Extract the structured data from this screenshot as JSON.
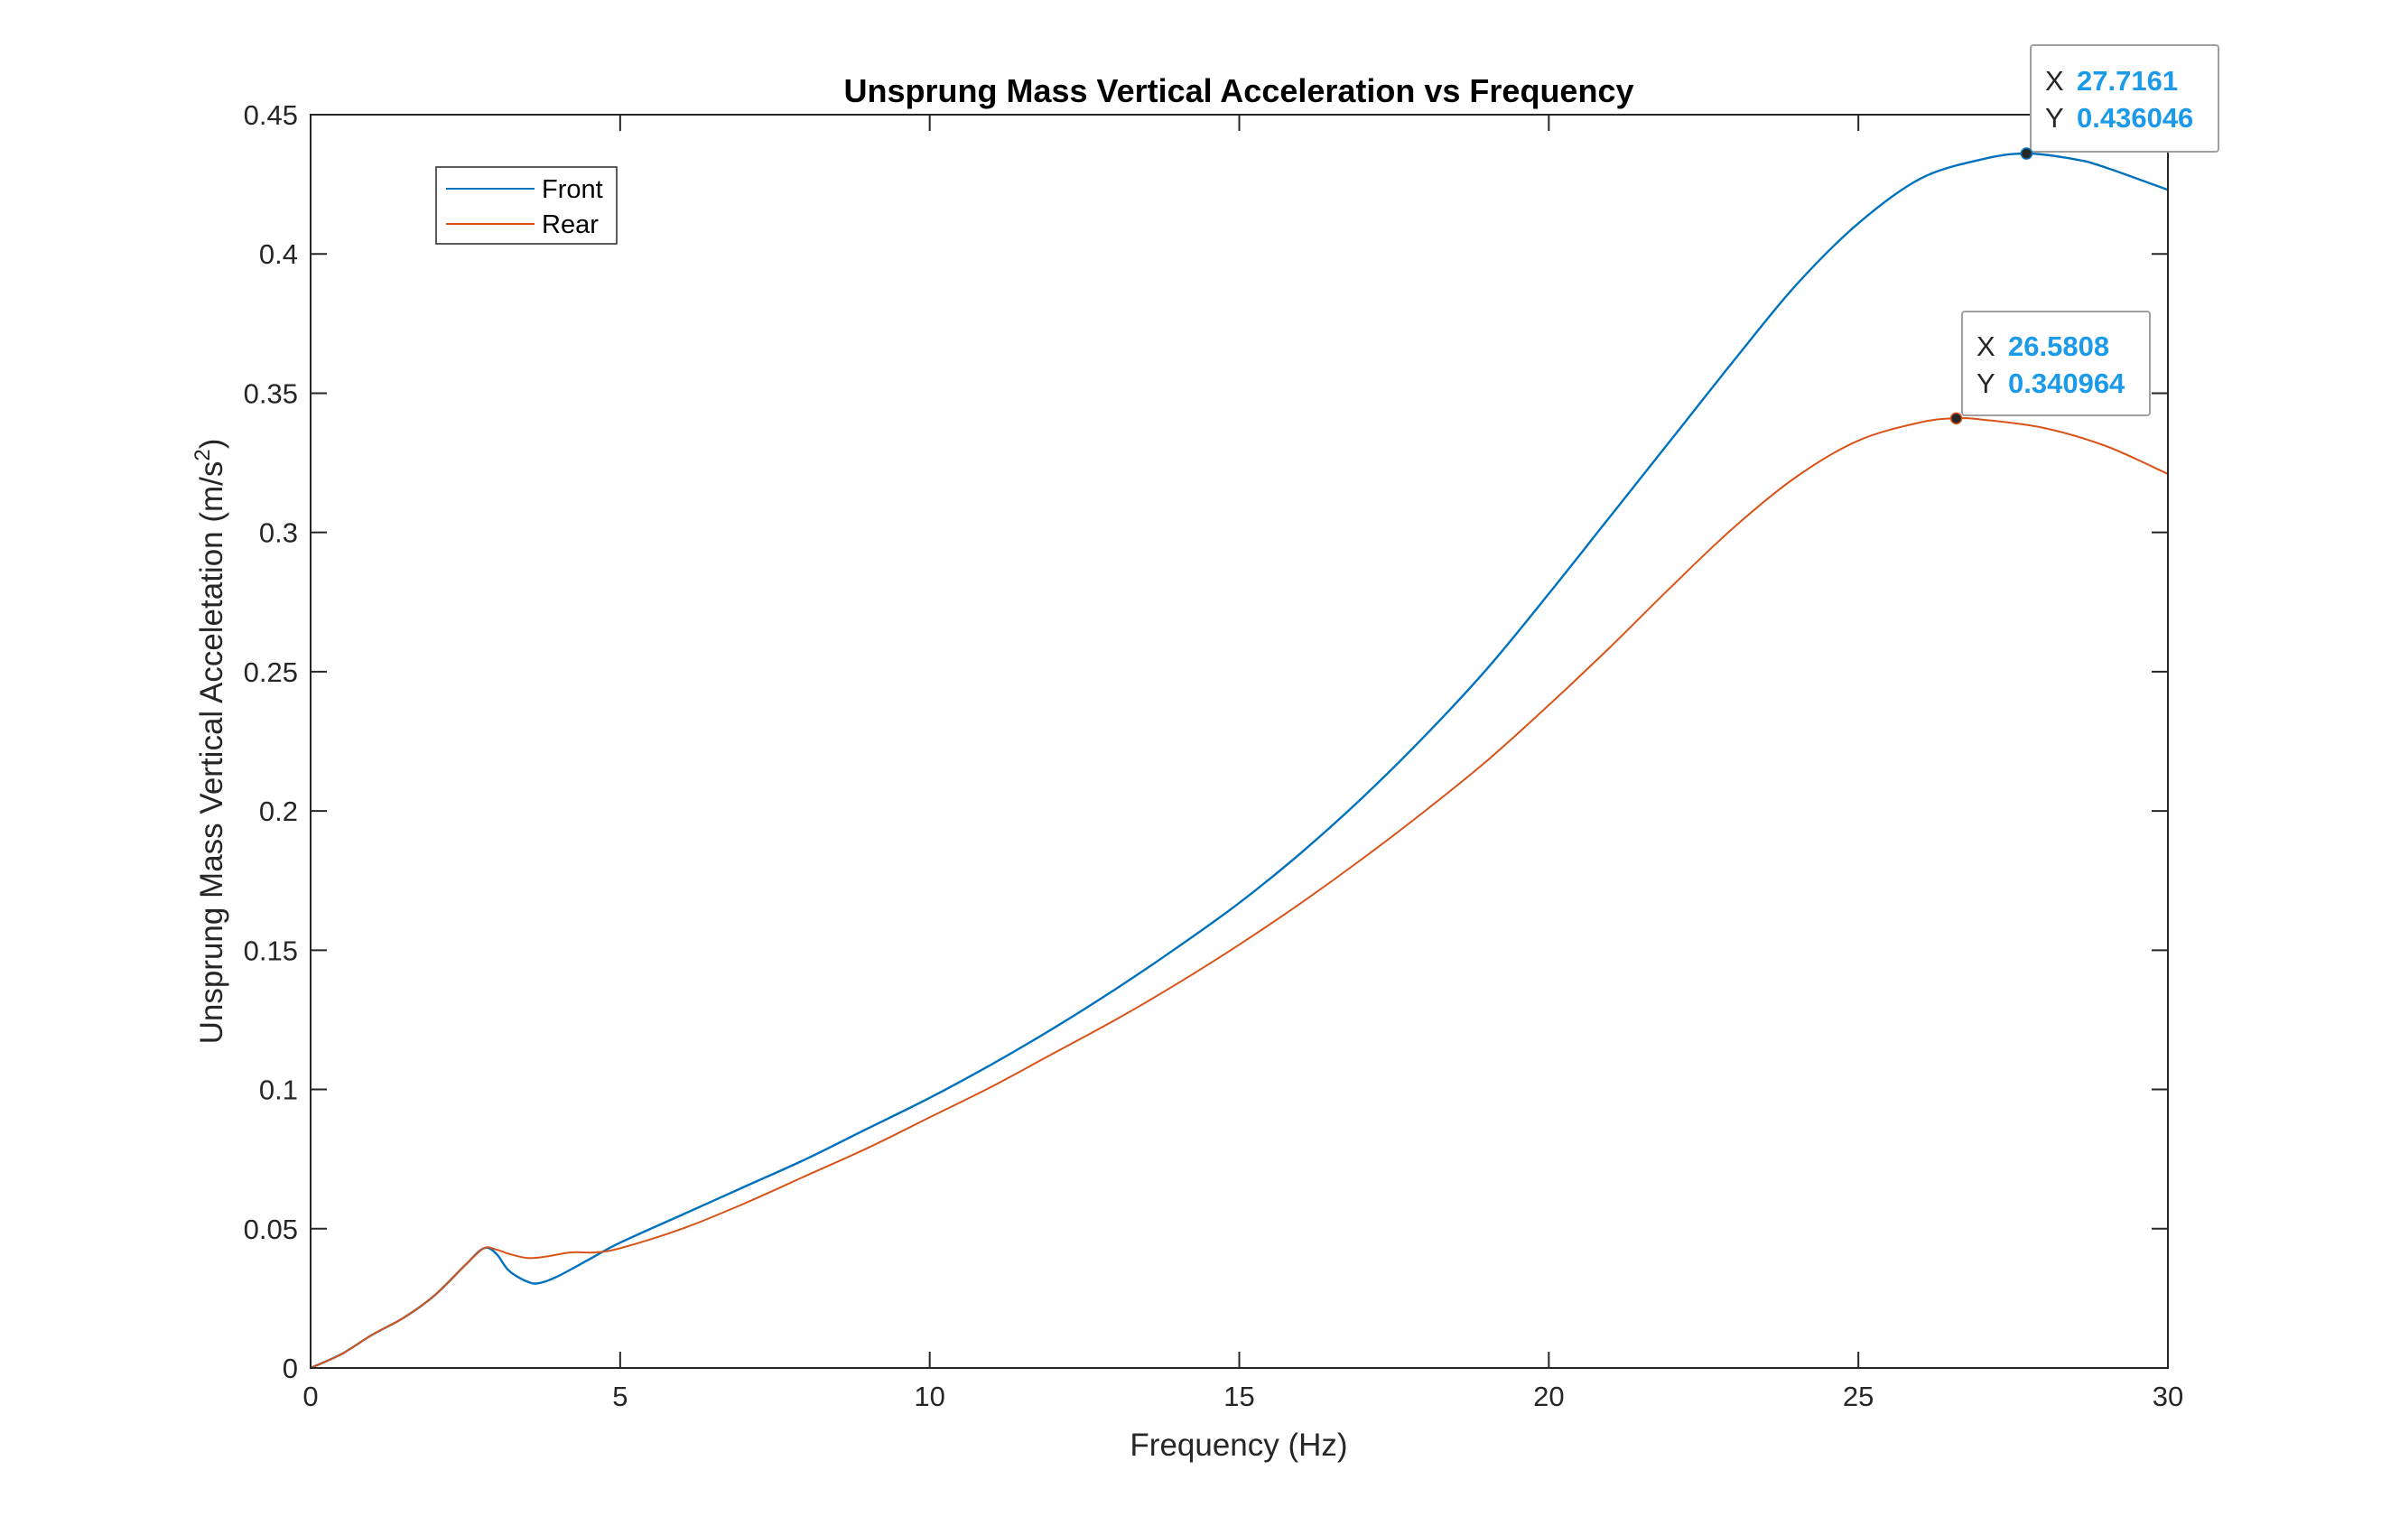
{
  "chart_data": {
    "type": "line",
    "title": "Unsprung Mass Vertical Acceleration vs Frequency",
    "xlabel": "Frequency (Hz)",
    "ylabel_main": "Unsprung Mass Vertical Acceletation (m/s",
    "ylabel_sup": "2",
    "ylabel_close": ")",
    "xlim": [
      0,
      30
    ],
    "ylim": [
      0,
      0.45
    ],
    "xticks": [
      0,
      5,
      10,
      15,
      20,
      25,
      30
    ],
    "xtick_labels": [
      "0",
      "5",
      "10",
      "15",
      "20",
      "25",
      "30"
    ],
    "yticks": [
      0,
      0.05,
      0.1,
      0.15,
      0.2,
      0.25,
      0.3,
      0.35,
      0.4,
      0.45
    ],
    "ytick_labels": [
      "0",
      "0.05",
      "0.1",
      "0.15",
      "0.2",
      "0.25",
      "0.3",
      "0.35",
      "0.4",
      "0.45"
    ],
    "grid": false,
    "legend_position": "top-left",
    "series": [
      {
        "name": "Front",
        "color": "#0072bd",
        "x": [
          0,
          0.5,
          1,
          1.5,
          2,
          2.5,
          2.8,
          3,
          3.2,
          3.5,
          3.7,
          4,
          4.5,
          5,
          6,
          7,
          8,
          9,
          10,
          11,
          12,
          13,
          14,
          15,
          16,
          17,
          18,
          19,
          20,
          21,
          22,
          23,
          24,
          25,
          26,
          27,
          27.7161,
          28.5,
          29,
          30
        ],
        "y": [
          0,
          0.005,
          0.012,
          0.018,
          0.026,
          0.037,
          0.043,
          0.041,
          0.035,
          0.031,
          0.0305,
          0.033,
          0.039,
          0.045,
          0.055,
          0.065,
          0.075,
          0.086,
          0.097,
          0.109,
          0.122,
          0.136,
          0.151,
          0.167,
          0.185,
          0.205,
          0.227,
          0.251,
          0.278,
          0.306,
          0.334,
          0.362,
          0.389,
          0.411,
          0.427,
          0.434,
          0.436046,
          0.434,
          0.431,
          0.423
        ]
      },
      {
        "name": "Rear",
        "color": "#d95319",
        "x": [
          0,
          0.5,
          1,
          1.5,
          2,
          2.5,
          2.8,
          3,
          3.2,
          3.5,
          3.8,
          4.2,
          4.6,
          5,
          6,
          7,
          8,
          9,
          10,
          11,
          12,
          13,
          14,
          15,
          16,
          17,
          18,
          19,
          20,
          21,
          22,
          23,
          24,
          25,
          26,
          26.5808,
          27,
          28,
          29,
          30
        ],
        "y": [
          0,
          0.005,
          0.012,
          0.018,
          0.026,
          0.037,
          0.043,
          0.0425,
          0.041,
          0.0395,
          0.04,
          0.0415,
          0.0415,
          0.043,
          0.05,
          0.059,
          0.069,
          0.079,
          0.09,
          0.101,
          0.113,
          0.125,
          0.138,
          0.152,
          0.167,
          0.183,
          0.2,
          0.218,
          0.238,
          0.259,
          0.281,
          0.302,
          0.32,
          0.333,
          0.3395,
          0.340964,
          0.3405,
          0.3375,
          0.331,
          0.321
        ]
      }
    ],
    "annotations": [
      {
        "series": "Front",
        "x": 27.7161,
        "y": 0.436046,
        "x_label": "X",
        "y_label": "Y",
        "x_value": "27.7161",
        "y_value": "0.436046"
      },
      {
        "series": "Rear",
        "x": 26.5808,
        "y": 0.340964,
        "x_label": "X",
        "y_label": "Y",
        "x_value": "26.5808",
        "y_value": "0.340964"
      }
    ]
  }
}
